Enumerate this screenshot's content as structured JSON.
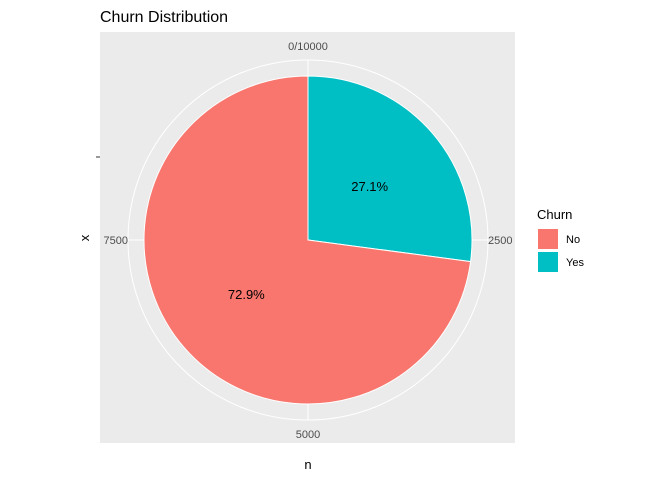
{
  "chart_data": {
    "type": "pie",
    "title": "Churn Distribution",
    "xlabel": "n",
    "ylabel": "x",
    "total": 10000,
    "slices": [
      {
        "label": "Yes",
        "value": 2710,
        "percent_label": "27.1%",
        "color": "#00BFC4"
      },
      {
        "label": "No",
        "value": 7290,
        "percent_label": "72.9%",
        "color": "#F8766D"
      }
    ],
    "angular_ticks": [
      {
        "value": 0,
        "label": "0/10000"
      },
      {
        "value": 2500,
        "label": "2500"
      },
      {
        "value": 5000,
        "label": "5000"
      },
      {
        "value": 7500,
        "label": "7500"
      }
    ],
    "legend": {
      "title": "Churn",
      "position": "right",
      "items": [
        {
          "label": "No",
          "color": "#F8766D"
        },
        {
          "label": "Yes",
          "color": "#00BFC4"
        }
      ]
    },
    "panel_background": "#EBEBEB",
    "grid": true,
    "grid_color": "#FFFFFF"
  }
}
